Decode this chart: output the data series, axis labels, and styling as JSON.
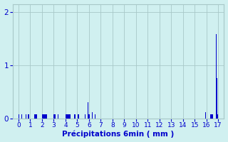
{
  "title": "",
  "xlabel": "Précipitations 6min ( mm )",
  "ylabel": "",
  "bar_color": "#0000cc",
  "background_color": "#d0f0f0",
  "grid_color": "#a8c8c8",
  "tick_color": "#0000cc",
  "label_color": "#0000cc",
  "xlim": [
    -0.5,
    17.5
  ],
  "ylim": [
    0,
    2.15
  ],
  "yticks": [
    0,
    1,
    2
  ],
  "xticks": [
    0,
    1,
    2,
    3,
    4,
    5,
    6,
    7,
    8,
    9,
    10,
    11,
    12,
    13,
    14,
    15,
    16,
    17
  ],
  "bars": [
    [
      0.05,
      0.07
    ],
    [
      0.12,
      0.07
    ],
    [
      0.18,
      0.07
    ],
    [
      0.25,
      0.07
    ],
    [
      0.55,
      0.07
    ],
    [
      0.62,
      0.07
    ],
    [
      0.82,
      0.07
    ],
    [
      0.88,
      0.07
    ],
    [
      1.35,
      0.07
    ],
    [
      1.42,
      0.07
    ],
    [
      1.48,
      0.07
    ],
    [
      1.55,
      0.07
    ],
    [
      2.02,
      0.07
    ],
    [
      2.08,
      0.07
    ],
    [
      2.15,
      0.07
    ],
    [
      2.22,
      0.07
    ],
    [
      2.28,
      0.07
    ],
    [
      2.35,
      0.07
    ],
    [
      2.42,
      0.07
    ],
    [
      3.02,
      0.07
    ],
    [
      3.08,
      0.07
    ],
    [
      3.15,
      0.07
    ],
    [
      3.22,
      0.07
    ],
    [
      3.28,
      0.07
    ],
    [
      3.35,
      0.07
    ],
    [
      3.82,
      0.07
    ],
    [
      3.88,
      0.07
    ],
    [
      4.02,
      0.07
    ],
    [
      4.08,
      0.07
    ],
    [
      4.15,
      0.07
    ],
    [
      4.22,
      0.07
    ],
    [
      4.28,
      0.07
    ],
    [
      4.35,
      0.07
    ],
    [
      4.42,
      0.07
    ],
    [
      4.75,
      0.07
    ],
    [
      4.82,
      0.07
    ],
    [
      5.08,
      0.07
    ],
    [
      5.15,
      0.07
    ],
    [
      5.52,
      0.07
    ],
    [
      5.58,
      0.07
    ],
    [
      5.65,
      0.07
    ],
    [
      5.92,
      0.3
    ],
    [
      5.98,
      0.07
    ],
    [
      6.05,
      0.07
    ],
    [
      6.28,
      0.12
    ],
    [
      6.52,
      0.07
    ],
    [
      15.95,
      0.12
    ],
    [
      16.35,
      0.07
    ],
    [
      16.42,
      0.07
    ],
    [
      16.48,
      0.07
    ],
    [
      16.55,
      0.07
    ],
    [
      16.75,
      0.18
    ],
    [
      16.85,
      1.58
    ],
    [
      16.92,
      0.75
    ],
    [
      16.98,
      0.07
    ]
  ],
  "bar_width": 0.05
}
